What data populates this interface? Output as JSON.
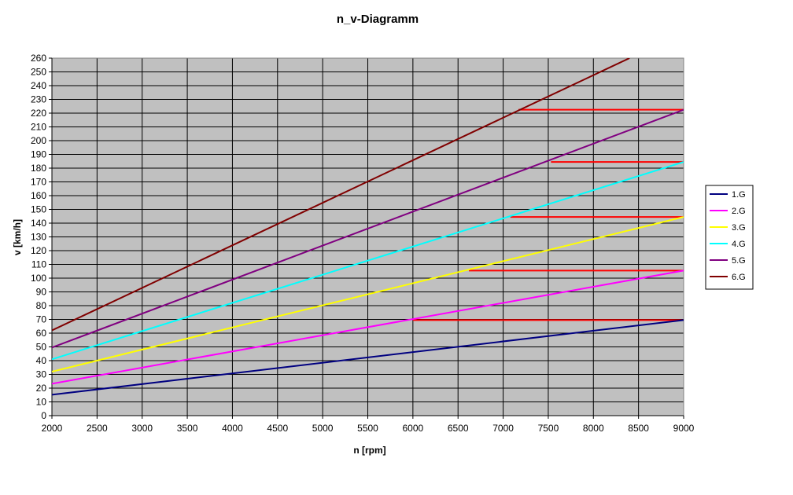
{
  "chart_data": {
    "type": "line",
    "title": "n_v-Diagramm",
    "xlabel": "n [rpm]",
    "ylabel": "v [km/h]",
    "xlim": [
      2000,
      9000
    ],
    "ylim": [
      0,
      260
    ],
    "xticks": [
      2000,
      2500,
      3000,
      3500,
      4000,
      4500,
      5000,
      5500,
      6000,
      6500,
      7000,
      7500,
      8000,
      8500,
      9000
    ],
    "yticks": [
      0,
      10,
      20,
      30,
      40,
      50,
      60,
      70,
      80,
      90,
      100,
      110,
      120,
      130,
      140,
      150,
      160,
      170,
      180,
      190,
      200,
      210,
      220,
      230,
      240,
      250,
      260
    ],
    "grid": true,
    "plot_background": "#C0C0C0",
    "legend_position": "right",
    "series": [
      {
        "name": "1.G",
        "color": "#000080",
        "x": [
          2000,
          9000
        ],
        "y": [
          15.2,
          69.5
        ]
      },
      {
        "name": "2.G",
        "color": "#FF00FF",
        "x": [
          2000,
          9000
        ],
        "y": [
          23.2,
          105.5
        ]
      },
      {
        "name": "3.G",
        "color": "#FFFF00",
        "x": [
          2000,
          9000
        ],
        "y": [
          32,
          144.5
        ]
      },
      {
        "name": "4.G",
        "color": "#00FFFF",
        "x": [
          2000,
          9000
        ],
        "y": [
          41,
          184.5
        ]
      },
      {
        "name": "5.G",
        "color": "#800080",
        "x": [
          2000,
          9000
        ],
        "y": [
          49.5,
          222.5
        ]
      },
      {
        "name": "6.G",
        "color": "#800000",
        "x": [
          2000,
          8400
        ],
        "y": [
          62,
          260
        ]
      }
    ],
    "shift_lines": {
      "color": "#FF0000",
      "segments": [
        {
          "x": [
            6000,
            9000
          ],
          "y": [
            69.5,
            69.5
          ]
        },
        {
          "x": [
            6620,
            9000
          ],
          "y": [
            105.5,
            105.5
          ]
        },
        {
          "x": [
            7080,
            9000
          ],
          "y": [
            144.5,
            144.5
          ]
        },
        {
          "x": [
            7530,
            9000
          ],
          "y": [
            184.5,
            184.5
          ]
        },
        {
          "x": [
            7170,
            9000
          ],
          "y": [
            222.5,
            222.5
          ]
        }
      ]
    }
  }
}
